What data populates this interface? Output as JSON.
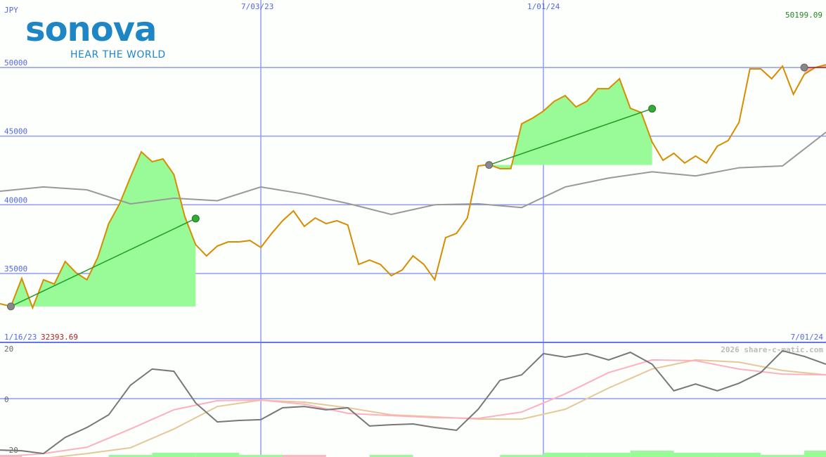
{
  "header": {
    "currency": "JPY",
    "last_price": "50199.09",
    "start_date_label": "1/16/23",
    "start_price": "32393.69",
    "end_date_label": "7/01/24",
    "watermark": "2026 share-c-matic.com"
  },
  "logo": {
    "name": "sonova",
    "tagline": "HEAR THE WORLD"
  },
  "colors": {
    "price": "#d88c00",
    "ma": "#999999",
    "grid": "#8f9cf2",
    "gain_fill": "#98fb98",
    "loss_fill": "#ffb6c1",
    "trade_line": "#229922",
    "osc": "#777777",
    "osc_fast": "#ffb0c0",
    "osc_slow": "#e6c898"
  },
  "chart_data": [
    {
      "type": "line",
      "ylabel": "JPY",
      "ylim": [
        30800,
        52000
      ],
      "xlim": [
        "2023-01-16",
        "2024-07-01"
      ],
      "x_tick_labels": [
        "1/16/23",
        "7/03/23",
        "1/01/24",
        "7/01/24"
      ],
      "x_ticks": [
        "2023-07-03",
        "2024-01-01"
      ],
      "y_ticks": [
        35000,
        40000,
        45000,
        50000
      ],
      "y_tick_labels": [
        "35000",
        "40000",
        "45000",
        "50000"
      ],
      "grid": true,
      "x_start": "2023-01-16",
      "series": [
        {
          "key": "price",
          "x_step_weeks": 1,
          "values": [
            32800,
            32600,
            34640,
            32500,
            34540,
            34230,
            35870,
            35050,
            34540,
            36180,
            38630,
            40070,
            42010,
            43860,
            43140,
            43340,
            42210,
            39150,
            37100,
            36280,
            37000,
            37300,
            37300,
            37400,
            36890,
            37920,
            38840,
            39560,
            38430,
            39040,
            38630,
            38840,
            38530,
            35660,
            35970,
            35660,
            34840,
            35250,
            36280,
            35660,
            34540,
            37610,
            37920,
            39040,
            42830,
            42930,
            42630,
            42630,
            45900,
            46310,
            46830,
            47540,
            47950,
            47130,
            47540,
            48460,
            48460,
            49180,
            47030,
            46720,
            44570,
            43240,
            43750,
            43040,
            43550,
            43040,
            44270,
            44680,
            46010,
            49900,
            49900,
            49180,
            50100,
            48050,
            49500,
            50000,
            50199
          ]
        },
        {
          "key": "ma",
          "x_step_weeks": 4,
          "values": [
            40990,
            41300,
            41090,
            40070,
            40480,
            40300,
            41300,
            40780,
            40100,
            39300,
            40000,
            40070,
            39800,
            41300,
            41950,
            42400,
            42100,
            42700,
            42830,
            45290
          ]
        }
      ],
      "trades": [
        {
          "entry_date": "2023-01-23",
          "entry": 32600,
          "exit_date": "2023-05-22",
          "exit": 39000,
          "result": "gain"
        },
        {
          "entry_date": "2023-11-27",
          "entry": 42900,
          "exit_date": "2024-03-11",
          "exit": 47000,
          "result": "gain"
        },
        {
          "entry_date": "2024-06-17",
          "entry": 50000,
          "result": "loss"
        }
      ]
    },
    {
      "type": "line",
      "ylim": [
        -23,
        22
      ],
      "y_ticks": [
        20,
        0,
        -20
      ],
      "y_tick_labels": [
        "20",
        "0",
        "-20"
      ],
      "x_start": "2023-01-16",
      "series": [
        {
          "key": "osc",
          "x_step_weeks": 2,
          "values": [
            -20.3,
            -20.6,
            -21.7,
            -15.3,
            -11.4,
            -6.4,
            5.3,
            11.7,
            10.8,
            -1.7,
            -9.2,
            -8.6,
            -8.3,
            -3.6,
            -3.1,
            -4.4,
            -3.6,
            -10.8,
            -10.3,
            -10,
            -11.4,
            -12.5,
            -4.2,
            7.2,
            9.4,
            17.8,
            16.4,
            17.8,
            15.3,
            18.3,
            13.6,
            3.1,
            5.8,
            3.1,
            6.1,
            10.3,
            18.9,
            16.7,
            13.6
          ]
        },
        {
          "key": "osc_fast",
          "x_step_weeks": 4,
          "values": [
            -23,
            -21.7,
            -19.2,
            -12,
            -4.4,
            -0.8,
            -0.6,
            -2.2,
            -5.8,
            -6.7,
            -7.5,
            -7.8,
            -5.3,
            1.9,
            10.3,
            15.3,
            15,
            11.7,
            9.7,
            9.4
          ]
        },
        {
          "key": "osc_slow",
          "x_step_weeks": 4,
          "values": [
            -25.8,
            -23.6,
            -21.7,
            -19.4,
            -12,
            -3.1,
            -0.6,
            -1.4,
            -3.6,
            -6.4,
            -7.2,
            -8.1,
            -8.1,
            -4.2,
            4.2,
            11.7,
            15.3,
            14.4,
            11.1,
            9.4
          ]
        },
        {
          "key": "volume",
          "x_step_weeks": 4,
          "values": [
            -1,
            0,
            0,
            1,
            2,
            2,
            1,
            -1,
            0,
            1,
            0,
            0,
            1,
            2,
            2,
            3,
            2,
            2,
            1,
            3
          ]
        }
      ]
    }
  ]
}
